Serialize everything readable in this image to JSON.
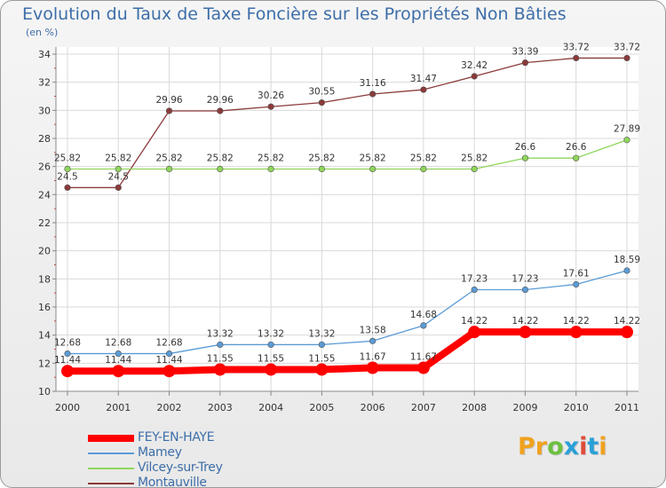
{
  "title": "Evolution du Taux de Taxe Foncière sur les Propriétés Non Bâties",
  "unit_label": "(en %)",
  "logo": {
    "letters": [
      "P",
      "r",
      "o",
      "x",
      "i",
      "t",
      "i"
    ],
    "colors": [
      "#f0a21e",
      "#f0a21e",
      "#6dbf3f",
      "#2aa0d8",
      "#e04a3a",
      "#2aa0d8",
      "#f0a21e"
    ]
  },
  "chart_data": {
    "type": "line",
    "x": [
      "2000",
      "2001",
      "2002",
      "2003",
      "2004",
      "2005",
      "2006",
      "2007",
      "2008",
      "2009",
      "2010",
      "2011"
    ],
    "ylim": [
      10,
      34
    ],
    "yticks": [
      "10",
      "12",
      "14",
      "16",
      "18",
      "20",
      "22",
      "24",
      "26",
      "28",
      "30",
      "32",
      "34"
    ],
    "grid": true,
    "legend_position": "bottom-left",
    "series": [
      {
        "name": "FEY-EN-HAYE",
        "color": "#ff0000",
        "values": [
          11.44,
          11.44,
          11.44,
          11.55,
          11.55,
          11.55,
          11.67,
          11.67,
          14.22,
          14.22,
          14.22,
          14.22
        ],
        "labels": [
          "11.44",
          "11.44",
          "11.44",
          "11.55",
          "11.55",
          "11.55",
          "11.67",
          "11.67",
          "14.22",
          "14.22",
          "14.22",
          "14.22"
        ]
      },
      {
        "name": "Mamey",
        "color": "#5b9bd5",
        "values": [
          12.68,
          12.68,
          12.68,
          13.32,
          13.32,
          13.32,
          13.58,
          14.68,
          17.23,
          17.23,
          17.61,
          18.59
        ],
        "labels": [
          "12.68",
          "12.68",
          "12.68",
          "13.32",
          "13.32",
          "13.32",
          "13.58",
          "14.68",
          "17.23",
          "17.23",
          "17.61",
          "18.59"
        ]
      },
      {
        "name": "Vilcey-sur-Trey",
        "color": "#8fd65a",
        "values": [
          25.82,
          25.82,
          25.82,
          25.82,
          25.82,
          25.82,
          25.82,
          25.82,
          25.82,
          26.6,
          26.6,
          27.89
        ],
        "labels": [
          "25.82",
          "25.82",
          "25.82",
          "25.82",
          "25.82",
          "25.82",
          "25.82",
          "25.82",
          "25.82",
          "26.6",
          "26.6",
          "27.89"
        ]
      },
      {
        "name": "Montauville",
        "color": "#8b3a3a",
        "values": [
          24.5,
          24.5,
          29.96,
          29.96,
          30.26,
          30.55,
          31.16,
          31.47,
          32.42,
          33.39,
          33.72,
          33.72
        ],
        "labels": [
          "24.5",
          "24.5",
          "29.96",
          "29.96",
          "30.26",
          "30.55",
          "31.16",
          "31.47",
          "32.42",
          "33.39",
          "33.72",
          "33.72"
        ]
      }
    ]
  }
}
